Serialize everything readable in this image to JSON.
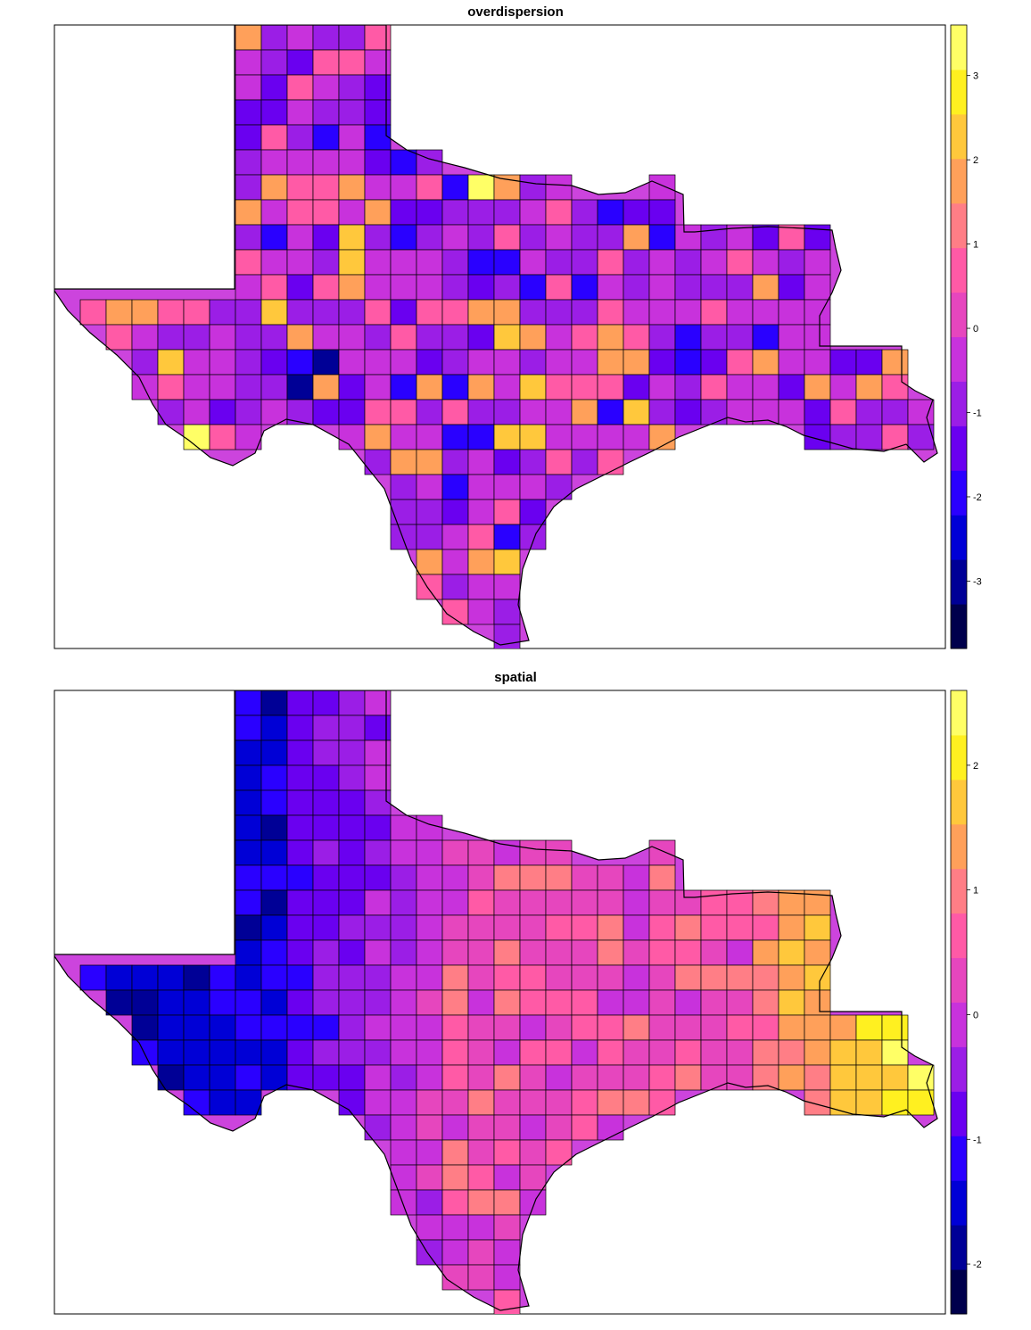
{
  "palette": [
    "#00004c",
    "#000096",
    "#0000d6",
    "#2a00ff",
    "#6a00f0",
    "#9b1ee6",
    "#c832dc",
    "#e646be",
    "#ff5aa6",
    "#ff7e86",
    "#ffa05a",
    "#ffc83c",
    "#fff020",
    "#ffff66"
  ],
  "map_region": "Texas and Louisiana counties/parishes",
  "panels": [
    {
      "title": "overdispersion",
      "legend": {
        "min": -3.8,
        "max": 3.6,
        "ticks": [
          -3,
          -2,
          -1,
          0,
          1,
          2,
          3
        ]
      },
      "field": "overdispersion"
    },
    {
      "title": "spatial",
      "legend": {
        "min": -2.4,
        "max": 2.6,
        "ticks": [
          -2,
          -1,
          0,
          1,
          2
        ]
      },
      "field": "spatial"
    }
  ]
}
